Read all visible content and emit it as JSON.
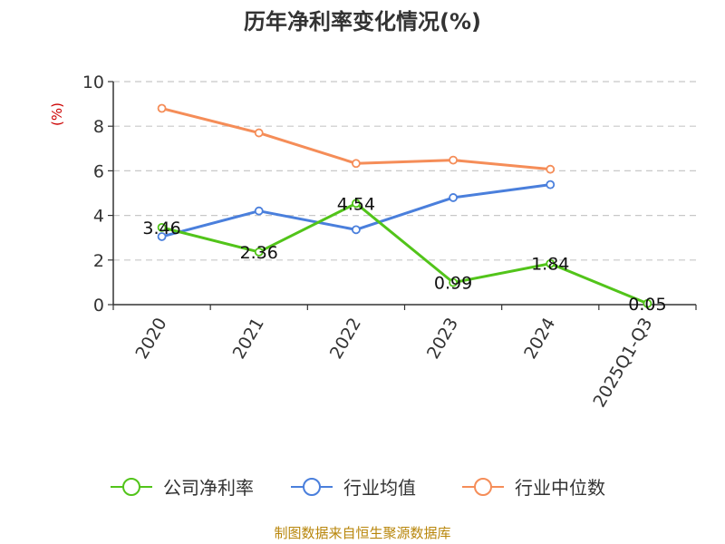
{
  "chart_data": {
    "type": "line",
    "title": "历年净利率变化情况(%)",
    "ylabel": "(%)",
    "ylim": [
      0,
      10
    ],
    "yticks": [
      0,
      2,
      4,
      6,
      8,
      10
    ],
    "categories": [
      "2020",
      "2021",
      "2022",
      "2023",
      "2024",
      "2025Q1-Q3"
    ],
    "grid": true,
    "legend_position": "bottom",
    "series": [
      {
        "name": "公司净利率",
        "color": "#52c41a",
        "values": [
          3.46,
          2.36,
          4.54,
          0.99,
          1.84,
          0.05
        ],
        "labels": [
          "3.46",
          "2.36",
          "4.54",
          "0.99",
          "1.84",
          "0.05"
        ]
      },
      {
        "name": "行业均值",
        "color": "#4a7fdc",
        "values": [
          3.05,
          4.2,
          3.36,
          4.8,
          5.38,
          null
        ]
      },
      {
        "name": "行业中位数",
        "color": "#f58d58",
        "values": [
          8.8,
          7.7,
          6.33,
          6.48,
          6.07,
          null
        ]
      }
    ]
  },
  "source": "制图数据来自恒生聚源数据库"
}
